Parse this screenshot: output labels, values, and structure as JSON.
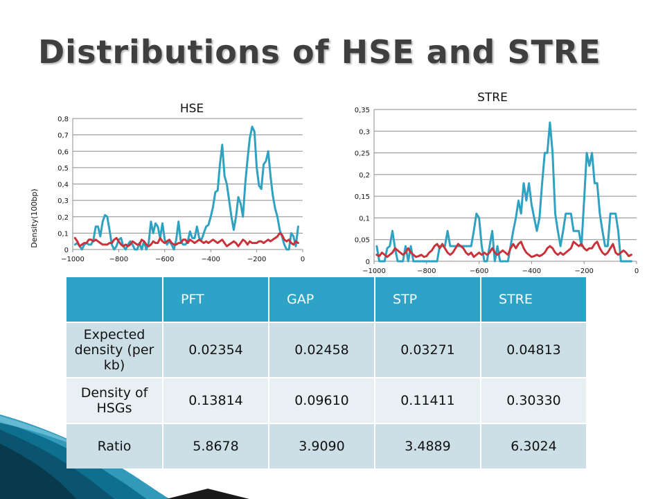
{
  "slide": {
    "title": "Distributions of HSE and STRE"
  },
  "colors": {
    "blue_series": "#2ea2c0",
    "red_series": "#c8323a",
    "table_header": "#2da3c7",
    "row_dark": "#ccdfe6",
    "row_light": "#e8f0f3"
  },
  "chart_data": [
    {
      "type": "line",
      "title": "HSE",
      "xlabel": "",
      "ylabel": "Density(100bp)",
      "xlim": [
        -1000,
        0
      ],
      "ylim": [
        0,
        0.8
      ],
      "xticks": [
        "−1000",
        "−800",
        "−600",
        "−400",
        "−200",
        "0"
      ],
      "yticks": [
        "0",
        "0,1",
        "0,2",
        "0,3",
        "0,4",
        "0,5",
        "0,6",
        "0,7",
        "0,8"
      ],
      "grid": true,
      "series": [
        {
          "color": "#2ea2c0",
          "x": [
            -990,
            -980,
            -970,
            -960,
            -950,
            -940,
            -930,
            -920,
            -910,
            -900,
            -890,
            -880,
            -870,
            -860,
            -850,
            -840,
            -830,
            -820,
            -810,
            -800,
            -790,
            -780,
            -770,
            -760,
            -750,
            -740,
            -730,
            -720,
            -710,
            -700,
            -690,
            -680,
            -670,
            -660,
            -650,
            -640,
            -630,
            -620,
            -610,
            -600,
            -590,
            -580,
            -570,
            -560,
            -550,
            -540,
            -530,
            -520,
            -510,
            -500,
            -490,
            -480,
            -470,
            -460,
            -450,
            -440,
            -430,
            -420,
            -410,
            -400,
            -390,
            -380,
            -370,
            -360,
            -350,
            -340,
            -330,
            -320,
            -310,
            -300,
            -290,
            -280,
            -270,
            -260,
            -250,
            -240,
            -230,
            -220,
            -210,
            -200,
            -190,
            -180,
            -170,
            -160,
            -150,
            -140,
            -130,
            -120,
            -110,
            -100,
            -90,
            -80,
            -70,
            -60,
            -50,
            -40,
            -30,
            -20
          ],
          "y": [
            0.03,
            0.04,
            0.02,
            0.0,
            0.03,
            0.04,
            0.03,
            0.03,
            0.06,
            0.14,
            0.14,
            0.08,
            0.17,
            0.21,
            0.2,
            0.12,
            0.03,
            0.0,
            0.02,
            0.06,
            0.07,
            0.02,
            0.0,
            0.03,
            0.05,
            0.03,
            0.0,
            0.0,
            0.04,
            0.0,
            0.05,
            0.0,
            0.04,
            0.17,
            0.1,
            0.16,
            0.14,
            0.07,
            0.16,
            0.06,
            0.03,
            0.05,
            0.03,
            0.0,
            0.06,
            0.17,
            0.05,
            0.03,
            0.03,
            0.05,
            0.11,
            0.07,
            0.07,
            0.14,
            0.07,
            0.06,
            0.1,
            0.14,
            0.15,
            0.2,
            0.26,
            0.35,
            0.36,
            0.52,
            0.64,
            0.45,
            0.4,
            0.3,
            0.2,
            0.12,
            0.2,
            0.32,
            0.28,
            0.2,
            0.4,
            0.55,
            0.68,
            0.75,
            0.72,
            0.5,
            0.39,
            0.37,
            0.52,
            0.54,
            0.6,
            0.45,
            0.33,
            0.25,
            0.2,
            0.12,
            0.08,
            0.03,
            0.0,
            0.0,
            0.1,
            0.08,
            0.02,
            0.14
          ]
        },
        {
          "color": "#c8323a",
          "x": [
            -990,
            -980,
            -970,
            -960,
            -950,
            -940,
            -930,
            -920,
            -910,
            -900,
            -890,
            -880,
            -870,
            -860,
            -850,
            -840,
            -830,
            -820,
            -810,
            -800,
            -790,
            -780,
            -770,
            -760,
            -750,
            -740,
            -730,
            -720,
            -710,
            -700,
            -690,
            -680,
            -670,
            -660,
            -650,
            -640,
            -630,
            -620,
            -610,
            -600,
            -590,
            -580,
            -570,
            -560,
            -550,
            -540,
            -530,
            -520,
            -510,
            -500,
            -490,
            -480,
            -470,
            -460,
            -450,
            -440,
            -430,
            -420,
            -410,
            -400,
            -390,
            -380,
            -370,
            -360,
            -350,
            -340,
            -330,
            -320,
            -310,
            -300,
            -290,
            -280,
            -270,
            -260,
            -250,
            -240,
            -230,
            -220,
            -210,
            -200,
            -190,
            -180,
            -170,
            -160,
            -150,
            -140,
            -130,
            -120,
            -110,
            -100,
            -90,
            -80,
            -70,
            -60,
            -50,
            -40,
            -30,
            -20
          ],
          "y": [
            0.07,
            0.05,
            0.02,
            0.03,
            0.04,
            0.04,
            0.06,
            0.06,
            0.05,
            0.06,
            0.05,
            0.04,
            0.03,
            0.03,
            0.03,
            0.04,
            0.04,
            0.06,
            0.07,
            0.05,
            0.03,
            0.02,
            0.03,
            0.02,
            0.03,
            0.05,
            0.04,
            0.03,
            0.03,
            0.06,
            0.05,
            0.03,
            0.02,
            0.03,
            0.05,
            0.04,
            0.04,
            0.07,
            0.05,
            0.04,
            0.05,
            0.06,
            0.04,
            0.03,
            0.03,
            0.04,
            0.04,
            0.06,
            0.06,
            0.04,
            0.06,
            0.05,
            0.04,
            0.05,
            0.06,
            0.05,
            0.04,
            0.05,
            0.04,
            0.05,
            0.06,
            0.05,
            0.04,
            0.05,
            0.06,
            0.04,
            0.02,
            0.03,
            0.04,
            0.05,
            0.04,
            0.02,
            0.04,
            0.06,
            0.05,
            0.03,
            0.05,
            0.04,
            0.04,
            0.04,
            0.05,
            0.05,
            0.04,
            0.05,
            0.06,
            0.05,
            0.06,
            0.07,
            0.08,
            0.1,
            0.09,
            0.06,
            0.05,
            0.06,
            0.04,
            0.03,
            0.05,
            0.04
          ]
        }
      ]
    },
    {
      "type": "line",
      "title": "STRE",
      "xlabel": "",
      "ylabel": "",
      "xlim": [
        -1000,
        0
      ],
      "ylim": [
        0,
        0.35
      ],
      "xticks": [
        "−1000",
        "−800",
        "−600",
        "−400",
        "−200",
        "0"
      ],
      "yticks": [
        "0",
        "0,05",
        "0,1",
        "0,15",
        "0,2",
        "0,25",
        "0,3",
        "0,35"
      ],
      "grid": true,
      "series": [
        {
          "color": "#2ea2c0",
          "x": [
            -990,
            -980,
            -970,
            -960,
            -950,
            -940,
            -930,
            -920,
            -910,
            -900,
            -890,
            -880,
            -870,
            -860,
            -850,
            -840,
            -830,
            -820,
            -810,
            -800,
            -790,
            -780,
            -770,
            -760,
            -750,
            -740,
            -730,
            -720,
            -710,
            -700,
            -690,
            -680,
            -670,
            -660,
            -650,
            -640,
            -630,
            -620,
            -610,
            -600,
            -590,
            -580,
            -570,
            -560,
            -550,
            -540,
            -530,
            -520,
            -510,
            -500,
            -490,
            -480,
            -470,
            -460,
            -450,
            -440,
            -430,
            -420,
            -410,
            -400,
            -390,
            -380,
            -370,
            -360,
            -350,
            -340,
            -330,
            -320,
            -310,
            -300,
            -290,
            -280,
            -270,
            -260,
            -250,
            -240,
            -230,
            -220,
            -210,
            -200,
            -190,
            -180,
            -170,
            -160,
            -150,
            -140,
            -130,
            -120,
            -110,
            -100,
            -90,
            -80,
            -70,
            -60,
            -50,
            -40,
            -30,
            -20
          ],
          "y": [
            0.035,
            0.0,
            0.0,
            0.0,
            0.03,
            0.035,
            0.07,
            0.03,
            0.0,
            0.0,
            0.0,
            0.035,
            0.0,
            0.035,
            0.0,
            0.0,
            0.0,
            0.0,
            0.0,
            0.0,
            0.0,
            0.0,
            0.0,
            0.0,
            0.035,
            0.035,
            0.035,
            0.07,
            0.035,
            0.035,
            0.035,
            0.035,
            0.035,
            0.035,
            0.035,
            0.035,
            0.035,
            0.07,
            0.11,
            0.1,
            0.035,
            0.0,
            0.0,
            0.035,
            0.07,
            0.0,
            0.035,
            0.0,
            0.0,
            0.0,
            0.0,
            0.035,
            0.07,
            0.1,
            0.14,
            0.11,
            0.18,
            0.14,
            0.18,
            0.13,
            0.1,
            0.07,
            0.1,
            0.18,
            0.25,
            0.25,
            0.32,
            0.25,
            0.11,
            0.07,
            0.035,
            0.07,
            0.11,
            0.11,
            0.11,
            0.07,
            0.07,
            0.07,
            0.035,
            0.14,
            0.25,
            0.22,
            0.25,
            0.18,
            0.18,
            0.11,
            0.07,
            0.035,
            0.035,
            0.11,
            0.11,
            0.11,
            0.07,
            0.0,
            0.0,
            0.0,
            0.0,
            0.0
          ]
        },
        {
          "color": "#c8323a",
          "x": [
            -990,
            -980,
            -970,
            -960,
            -950,
            -940,
            -930,
            -920,
            -910,
            -900,
            -890,
            -880,
            -870,
            -860,
            -850,
            -840,
            -830,
            -820,
            -810,
            -800,
            -790,
            -780,
            -770,
            -760,
            -750,
            -740,
            -730,
            -720,
            -710,
            -700,
            -690,
            -680,
            -670,
            -660,
            -650,
            -640,
            -630,
            -620,
            -610,
            -600,
            -590,
            -580,
            -570,
            -560,
            -550,
            -540,
            -530,
            -520,
            -510,
            -500,
            -490,
            -480,
            -470,
            -460,
            -450,
            -440,
            -430,
            -420,
            -410,
            -400,
            -390,
            -380,
            -370,
            -360,
            -350,
            -340,
            -330,
            -320,
            -310,
            -300,
            -290,
            -280,
            -270,
            -260,
            -250,
            -240,
            -230,
            -220,
            -210,
            -200,
            -190,
            -180,
            -170,
            -160,
            -150,
            -140,
            -130,
            -120,
            -110,
            -100,
            -90,
            -80,
            -70,
            -60,
            -50,
            -40,
            -30,
            -20
          ],
          "y": [
            0.015,
            0.012,
            0.02,
            0.015,
            0.01,
            0.015,
            0.02,
            0.03,
            0.025,
            0.02,
            0.015,
            0.02,
            0.03,
            0.02,
            0.015,
            0.01,
            0.012,
            0.015,
            0.01,
            0.012,
            0.02,
            0.025,
            0.035,
            0.04,
            0.03,
            0.04,
            0.03,
            0.02,
            0.015,
            0.02,
            0.03,
            0.04,
            0.035,
            0.03,
            0.02,
            0.015,
            0.02,
            0.01,
            0.015,
            0.02,
            0.015,
            0.02,
            0.015,
            0.02,
            0.03,
            0.02,
            0.015,
            0.02,
            0.025,
            0.02,
            0.015,
            0.03,
            0.04,
            0.03,
            0.04,
            0.045,
            0.03,
            0.02,
            0.015,
            0.01,
            0.012,
            0.015,
            0.012,
            0.015,
            0.02,
            0.03,
            0.035,
            0.03,
            0.02,
            0.015,
            0.02,
            0.015,
            0.02,
            0.025,
            0.03,
            0.045,
            0.04,
            0.035,
            0.04,
            0.03,
            0.025,
            0.03,
            0.03,
            0.04,
            0.045,
            0.03,
            0.02,
            0.015,
            0.02,
            0.03,
            0.04,
            0.02,
            0.015,
            0.02,
            0.025,
            0.02,
            0.012,
            0.015
          ]
        }
      ]
    }
  ],
  "table": {
    "headers": [
      "",
      "PFT",
      "GAP",
      "STP",
      "STRE"
    ],
    "rows": [
      {
        "label": "Expected density (per kb)",
        "values": [
          "0.02354",
          "0.02458",
          "0.03271",
          "0.04813"
        ]
      },
      {
        "label": "Density of HSGs",
        "values": [
          "0.13814",
          "0.09610",
          "0.11411",
          "0.30330"
        ]
      },
      {
        "label": "Ratio",
        "values": [
          "5.8678",
          "3.9090",
          "3.4889",
          "6.3024"
        ]
      }
    ]
  }
}
